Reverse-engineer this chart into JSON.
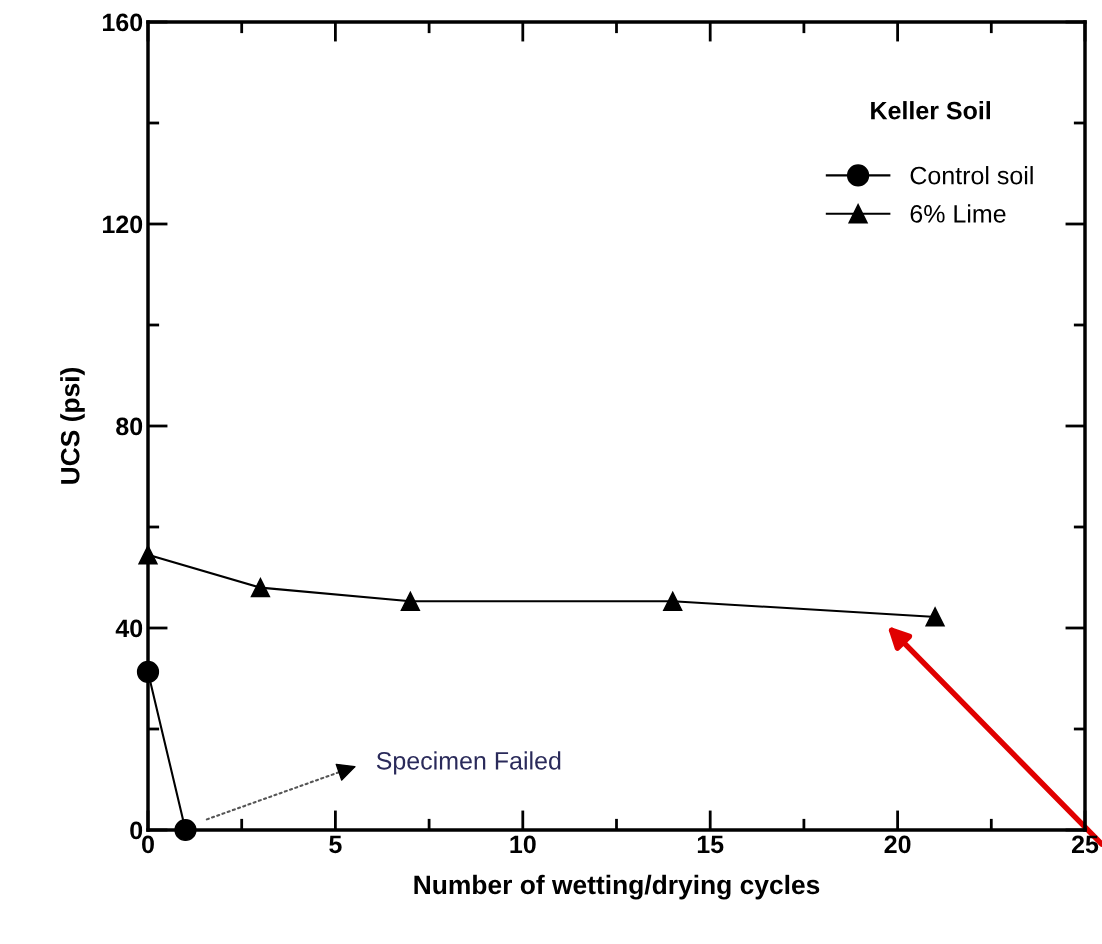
{
  "chart_data": {
    "type": "line",
    "xlabel": "Number of wetting/drying cycles",
    "ylabel": "UCS (psi)",
    "legend_title": "Keller Soil",
    "series": [
      {
        "name": "Control soil",
        "color": "#000000",
        "marker": "circle",
        "x": [
          0,
          1
        ],
        "values": [
          31.3,
          0
        ]
      },
      {
        "name": "6% Lime",
        "color": "#000000",
        "marker": "triangle",
        "x": [
          0,
          3,
          7,
          14,
          21
        ],
        "values": [
          54.5,
          48,
          45.3,
          45.3,
          42.2
        ]
      }
    ],
    "xlim": [
      0,
      25
    ],
    "xticks": [
      0,
      5,
      10,
      15,
      20,
      25
    ],
    "ylim": [
      0,
      160
    ],
    "yticks": [
      0,
      40,
      80,
      120,
      160
    ],
    "annotations": [
      "Specimen Failed"
    ],
    "legend": "top right",
    "grid": false,
    "line_style": "solid"
  }
}
